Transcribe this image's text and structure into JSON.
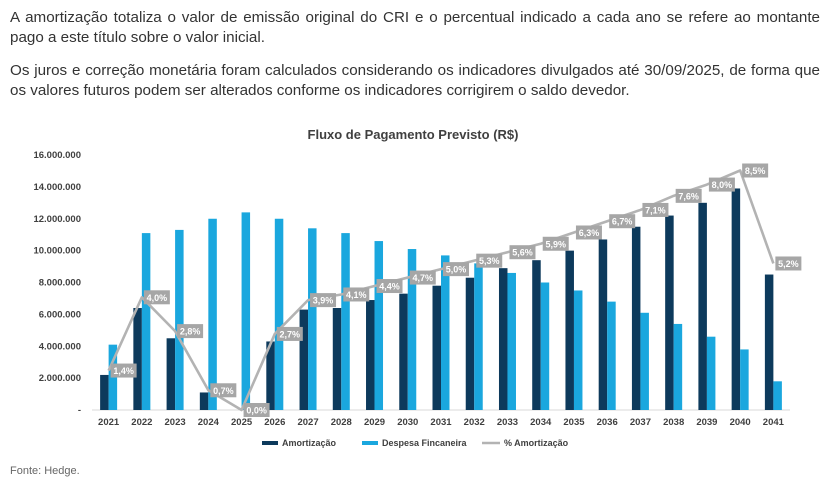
{
  "paragraphs": [
    "A amortização totaliza o valor de emissão original do CRI e o percentual indicado a cada ano se refere ao montante pago a este título sobre o valor inicial.",
    "Os juros e correção monetária foram calculados considerando os indicadores divulgados até 30/09/2025, de forma que os valores futuros podem ser alterados conforme os indicadores corrigirem o saldo devedor."
  ],
  "source": "Fonte: Hedge.",
  "colors": {
    "amortizacao": "#0d3a5c",
    "despesa": "#1aa7de",
    "percent_line": "#b3b3b3",
    "label_box": "#a6a6a6"
  },
  "chart_data": {
    "type": "bar",
    "title": "Fluxo de Pagamento Previsto (R$)",
    "xlabel": "",
    "ylabel": "",
    "ylim": [
      0,
      16000000
    ],
    "yticks": [
      0,
      2000000,
      4000000,
      6000000,
      8000000,
      10000000,
      12000000,
      14000000,
      16000000
    ],
    "ytick_labels": [
      "-",
      "2.000.000",
      "4.000.000",
      "6.000.000",
      "8.000.000",
      "10.000.000",
      "12.000.000",
      "14.000.000",
      "16.000.000"
    ],
    "categories": [
      "2021",
      "2022",
      "2023",
      "2024",
      "2025",
      "2026",
      "2027",
      "2028",
      "2029",
      "2030",
      "2031",
      "2032",
      "2033",
      "2034",
      "2035",
      "2036",
      "2037",
      "2038",
      "2039",
      "2040",
      "2041"
    ],
    "series": [
      {
        "name": "Amortização",
        "values": [
          2200000,
          6400000,
          4500000,
          1100000,
          0,
          4300000,
          6300000,
          6400000,
          6900000,
          7300000,
          7800000,
          8300000,
          8900000,
          9400000,
          10000000,
          10700000,
          11500000,
          12200000,
          13000000,
          13900000,
          8500000
        ]
      },
      {
        "name": "Despesa Fincaneira",
        "values": [
          4100000,
          11100000,
          11300000,
          12000000,
          12400000,
          12000000,
          11400000,
          11100000,
          10600000,
          10100000,
          9700000,
          9200000,
          8600000,
          8000000,
          7500000,
          6800000,
          6100000,
          5400000,
          4600000,
          3800000,
          1800000
        ]
      }
    ],
    "line_series": {
      "name": "% Amortização",
      "values": [
        1.4,
        4.0,
        2.8,
        0.7,
        0.0,
        2.7,
        3.9,
        4.1,
        4.4,
        4.7,
        5.0,
        5.3,
        5.6,
        5.9,
        6.3,
        6.7,
        7.1,
        7.6,
        8.0,
        8.5,
        5.2
      ],
      "labels": [
        "1,4%",
        "4,0%",
        "2,8%",
        "0,7%",
        "0,0%",
        "2,7%",
        "3,9%",
        "4,1%",
        "4,4%",
        "4,7%",
        "5,0%",
        "5,3%",
        "5,6%",
        "5,9%",
        "6,3%",
        "6,7%",
        "7,1%",
        "7,6%",
        "8,0%",
        "8,5%",
        "5,2%"
      ],
      "ylim": [
        0,
        9.05
      ]
    },
    "legend": {
      "placement": "bottom-center",
      "entries": [
        "Amortização",
        "Despesa Fincaneira",
        "% Amortização"
      ]
    }
  }
}
